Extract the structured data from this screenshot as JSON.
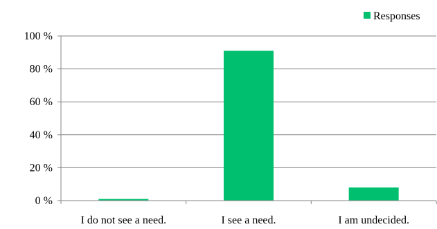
{
  "chart_data": {
    "type": "bar",
    "title": "",
    "xlabel": "",
    "ylabel": "",
    "categories": [
      "I do not see a need.",
      "I see a need.",
      "I am undecided."
    ],
    "series": [
      {
        "name": "Responses",
        "values": [
          1,
          91,
          8
        ],
        "color": "#00BF6F"
      }
    ],
    "ylim": [
      0,
      100
    ],
    "yticks": [
      0,
      20,
      40,
      60,
      80,
      100
    ],
    "ytick_labels": [
      "0 %",
      "20 %",
      "40 %",
      "60 %",
      "80 %",
      "100 %"
    ],
    "grid": true,
    "legend": {
      "position": "top-right",
      "label": "Responses"
    }
  }
}
